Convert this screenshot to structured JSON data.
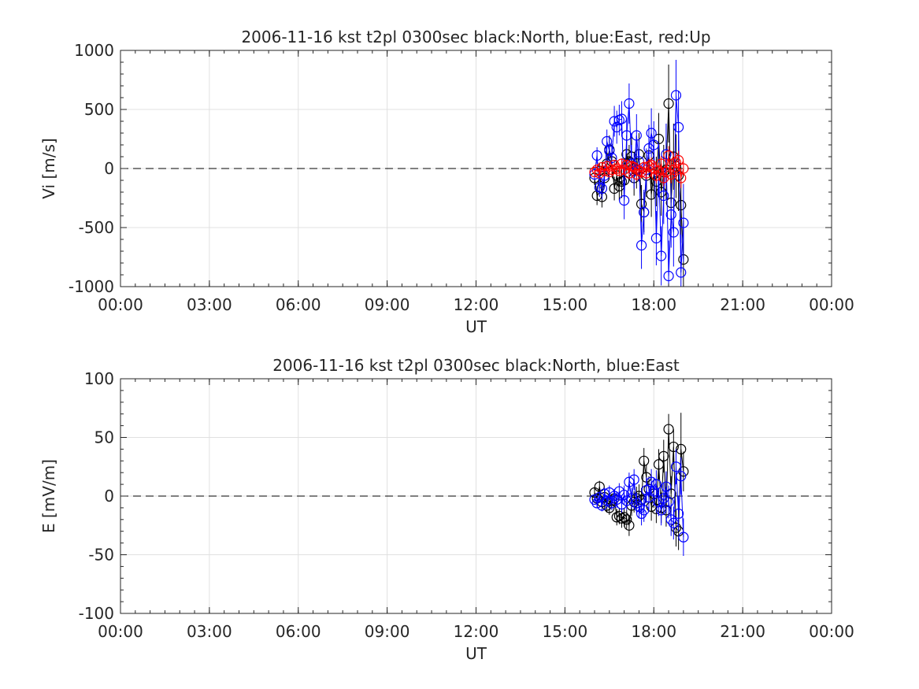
{
  "chart_data": [
    {
      "type": "scatter",
      "title": "2006-11-16 kst t2pl 0300sec black:North, blue:East, red:Up",
      "xlabel": "UT",
      "ylabel": "Vi [m/s]",
      "xlim": [
        "00:00",
        "24:00"
      ],
      "ylim": [
        -1000,
        1000
      ],
      "x_ticks": [
        "00:00",
        "03:00",
        "06:00",
        "09:00",
        "12:00",
        "15:00",
        "18:00",
        "21:00",
        "00:00"
      ],
      "y_ticks": [
        "-1000",
        "-500",
        "0",
        "500",
        "1000"
      ],
      "grid": true,
      "reference_line": 0,
      "series": [
        {
          "color": "#000000",
          "x": [
            "16:00",
            "16:05",
            "16:10",
            "16:15",
            "16:20",
            "16:25",
            "16:30",
            "16:35",
            "16:40",
            "16:45",
            "16:50",
            "16:55",
            "17:00",
            "17:05",
            "17:10",
            "17:15",
            "17:20",
            "17:25",
            "17:30",
            "17:35",
            "17:40",
            "17:45",
            "17:50",
            "17:55",
            "18:00",
            "18:05",
            "18:10",
            "18:15",
            "18:20",
            "18:25",
            "18:30",
            "18:35",
            "18:40",
            "18:45",
            "18:50",
            "18:55",
            "19:00"
          ],
          "y": [
            -80,
            -230,
            -20,
            -240,
            -80,
            40,
            160,
            60,
            -170,
            -60,
            -150,
            -110,
            -100,
            120,
            60,
            100,
            -80,
            -10,
            120,
            -300,
            -370,
            -60,
            110,
            -220,
            -50,
            -110,
            250,
            -200,
            -30,
            -10,
            550,
            -290,
            100,
            20,
            -60,
            -310,
            -770
          ],
          "err": [
            60,
            80,
            70,
            90,
            80,
            100,
            120,
            110,
            100,
            130,
            120,
            140,
            150,
            160,
            140,
            170,
            150,
            160,
            180,
            160,
            170,
            180,
            160,
            190,
            200,
            210,
            220,
            200,
            230,
            250,
            330,
            260,
            280,
            270,
            300,
            320,
            330
          ]
        },
        {
          "color": "#0000ff",
          "x": [
            "16:00",
            "16:05",
            "16:10",
            "16:15",
            "16:20",
            "16:25",
            "16:30",
            "16:35",
            "16:40",
            "16:45",
            "16:50",
            "16:55",
            "17:00",
            "17:05",
            "17:10",
            "17:15",
            "17:20",
            "17:25",
            "17:30",
            "17:35",
            "17:40",
            "17:45",
            "17:50",
            "17:55",
            "18:00",
            "18:05",
            "18:10",
            "18:15",
            "18:20",
            "18:25",
            "18:30",
            "18:35",
            "18:40",
            "18:45",
            "18:50",
            "18:55",
            "19:00"
          ],
          "y": [
            -50,
            110,
            -160,
            -170,
            -60,
            230,
            150,
            90,
            400,
            350,
            410,
            420,
            -270,
            280,
            550,
            40,
            -20,
            280,
            60,
            -650,
            -370,
            -10,
            170,
            300,
            200,
            -590,
            -20,
            -740,
            -230,
            120,
            -910,
            -390,
            -540,
            620,
            350,
            -880,
            -460
          ],
          "err": [
            50,
            70,
            80,
            90,
            80,
            100,
            110,
            120,
            130,
            140,
            130,
            150,
            160,
            150,
            170,
            160,
            150,
            180,
            170,
            200,
            190,
            180,
            200,
            210,
            200,
            230,
            220,
            250,
            240,
            260,
            300,
            280,
            290,
            300,
            310,
            320,
            330
          ]
        },
        {
          "color": "#ff0000",
          "x": [
            "16:00",
            "16:05",
            "16:10",
            "16:15",
            "16:20",
            "16:25",
            "16:30",
            "16:35",
            "16:40",
            "16:45",
            "16:50",
            "16:55",
            "17:00",
            "17:05",
            "17:10",
            "17:15",
            "17:20",
            "17:25",
            "17:30",
            "17:35",
            "17:40",
            "17:45",
            "17:50",
            "17:55",
            "18:00",
            "18:05",
            "18:10",
            "18:15",
            "18:20",
            "18:25",
            "18:30",
            "18:35",
            "18:40",
            "18:45",
            "18:50",
            "18:55",
            "19:00"
          ],
          "y": [
            -30,
            -10,
            -40,
            10,
            -20,
            20,
            -30,
            -10,
            30,
            0,
            -20,
            40,
            -10,
            30,
            -40,
            20,
            10,
            -50,
            -20,
            -30,
            10,
            -40,
            20,
            30,
            0,
            -60,
            -20,
            40,
            -80,
            -30,
            110,
            -50,
            -10,
            50,
            70,
            -80,
            0
          ],
          "err": [
            20,
            25,
            30,
            25,
            30,
            35,
            30,
            35,
            40,
            35,
            40,
            45,
            40,
            45,
            50,
            45,
            50,
            55,
            50,
            55,
            60,
            55,
            60,
            65,
            60,
            65,
            70,
            65,
            70,
            75,
            80,
            75,
            80,
            85,
            80,
            85,
            60
          ]
        }
      ]
    },
    {
      "type": "scatter",
      "title": "2006-11-16 kst t2pl 0300sec black:North, blue:East",
      "xlabel": "UT",
      "ylabel": "E [mV/m]",
      "xlim": [
        "00:00",
        "24:00"
      ],
      "ylim": [
        -100,
        100
      ],
      "x_ticks": [
        "00:00",
        "03:00",
        "06:00",
        "09:00",
        "12:00",
        "15:00",
        "18:00",
        "21:00",
        "00:00"
      ],
      "y_ticks": [
        "-100",
        "-50",
        "0",
        "50",
        "100"
      ],
      "grid": true,
      "reference_line": 0,
      "series": [
        {
          "color": "#000000",
          "x": [
            "16:00",
            "16:05",
            "16:10",
            "16:15",
            "16:20",
            "16:25",
            "16:30",
            "16:35",
            "16:40",
            "16:45",
            "16:50",
            "16:55",
            "17:00",
            "17:05",
            "17:10",
            "17:15",
            "17:20",
            "17:25",
            "17:30",
            "17:35",
            "17:40",
            "17:45",
            "17:50",
            "17:55",
            "18:00",
            "18:05",
            "18:10",
            "18:15",
            "18:20",
            "18:25",
            "18:30",
            "18:35",
            "18:40",
            "18:45",
            "18:50",
            "18:55",
            "19:00"
          ],
          "y": [
            3,
            -2,
            8,
            -5,
            -1,
            -8,
            -10,
            -4,
            -2,
            -18,
            -17,
            -19,
            -18,
            -20,
            -25,
            -8,
            -5,
            -2,
            0,
            -3,
            30,
            16,
            6,
            -9,
            2,
            -11,
            27,
            -10,
            34,
            -12,
            57,
            2,
            42,
            -27,
            -30,
            40,
            21
          ],
          "err": [
            4,
            4,
            5,
            5,
            6,
            6,
            6,
            6,
            7,
            7,
            7,
            8,
            8,
            8,
            9,
            9,
            9,
            10,
            10,
            10,
            11,
            11,
            11,
            12,
            12,
            12,
            13,
            13,
            14,
            14,
            13,
            15,
            15,
            16,
            16,
            31,
            17
          ]
        },
        {
          "color": "#0000ff",
          "x": [
            "16:00",
            "16:05",
            "16:10",
            "16:15",
            "16:20",
            "16:25",
            "16:30",
            "16:35",
            "16:40",
            "16:45",
            "16:50",
            "16:55",
            "17:00",
            "17:05",
            "17:10",
            "17:15",
            "17:20",
            "17:25",
            "17:30",
            "17:35",
            "17:40",
            "17:45",
            "17:50",
            "17:55",
            "18:00",
            "18:05",
            "18:10",
            "18:15",
            "18:20",
            "18:25",
            "18:30",
            "18:35",
            "18:40",
            "18:45",
            "18:50",
            "18:55",
            "19:00"
          ],
          "y": [
            -3,
            -6,
            -1,
            -8,
            2,
            -4,
            3,
            -6,
            0,
            -3,
            4,
            -7,
            1,
            -4,
            12,
            -2,
            14,
            -6,
            -9,
            -15,
            -12,
            5,
            -1,
            12,
            4,
            10,
            -5,
            -12,
            -2,
            8,
            -5,
            -20,
            -23,
            25,
            -15,
            17,
            -35
          ],
          "err": [
            3,
            4,
            4,
            5,
            5,
            5,
            6,
            6,
            6,
            7,
            7,
            7,
            8,
            8,
            8,
            9,
            9,
            9,
            10,
            10,
            10,
            11,
            11,
            11,
            12,
            12,
            12,
            13,
            13,
            13,
            14,
            14,
            14,
            15,
            15,
            16,
            16
          ]
        }
      ]
    }
  ]
}
